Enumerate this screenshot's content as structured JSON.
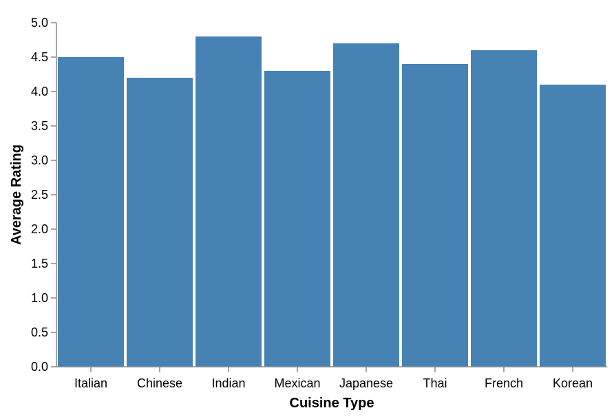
{
  "chart_data": {
    "type": "bar",
    "categories": [
      "Italian",
      "Chinese",
      "Indian",
      "Mexican",
      "Japanese",
      "Thai",
      "French",
      "Korean"
    ],
    "values": [
      4.5,
      4.2,
      4.8,
      4.3,
      4.7,
      4.4,
      4.6,
      4.1
    ],
    "xlabel": "Cuisine Type",
    "ylabel": "Average Rating",
    "ylim": [
      0,
      5
    ],
    "yticks": [
      "0.0",
      "0.5",
      "1.0",
      "1.5",
      "2.0",
      "2.5",
      "3.0",
      "3.5",
      "4.0",
      "4.5",
      "5.0"
    ],
    "bar_color": "#4682b4",
    "grid": false,
    "legend": "none"
  }
}
